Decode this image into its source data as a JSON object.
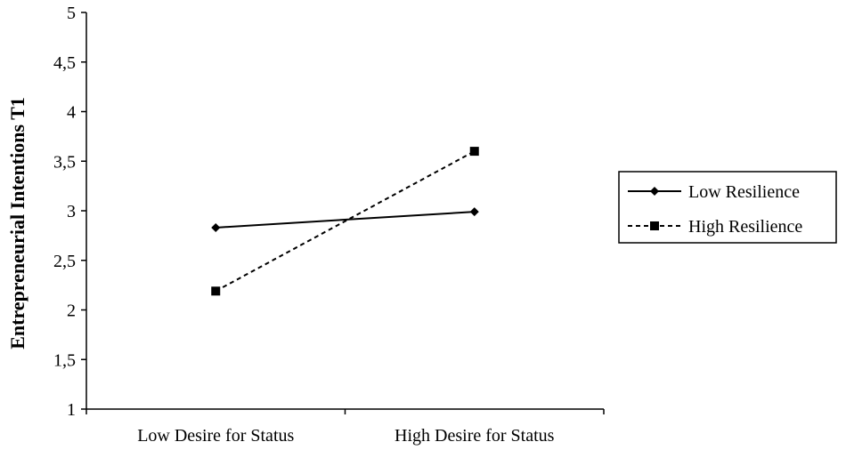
{
  "chart_data": {
    "type": "line",
    "title": "",
    "xlabel": "",
    "ylabel": "Entrepreneurial Intentions T1",
    "categories": [
      "Low Desire for Status",
      "High Desire for Status"
    ],
    "ylim": [
      1,
      5
    ],
    "yticks": [
      "1",
      "1,5",
      "2",
      "2,5",
      "3",
      "3,5",
      "4",
      "4,5",
      "5"
    ],
    "series": [
      {
        "name": "Low Resilience",
        "values": [
          2.83,
          2.99
        ],
        "marker": "diamond",
        "line_style": "solid"
      },
      {
        "name": "High Resilience",
        "values": [
          2.19,
          3.6
        ],
        "marker": "square",
        "line_style": "dashed"
      }
    ],
    "legend_position": "right",
    "grid": false
  }
}
